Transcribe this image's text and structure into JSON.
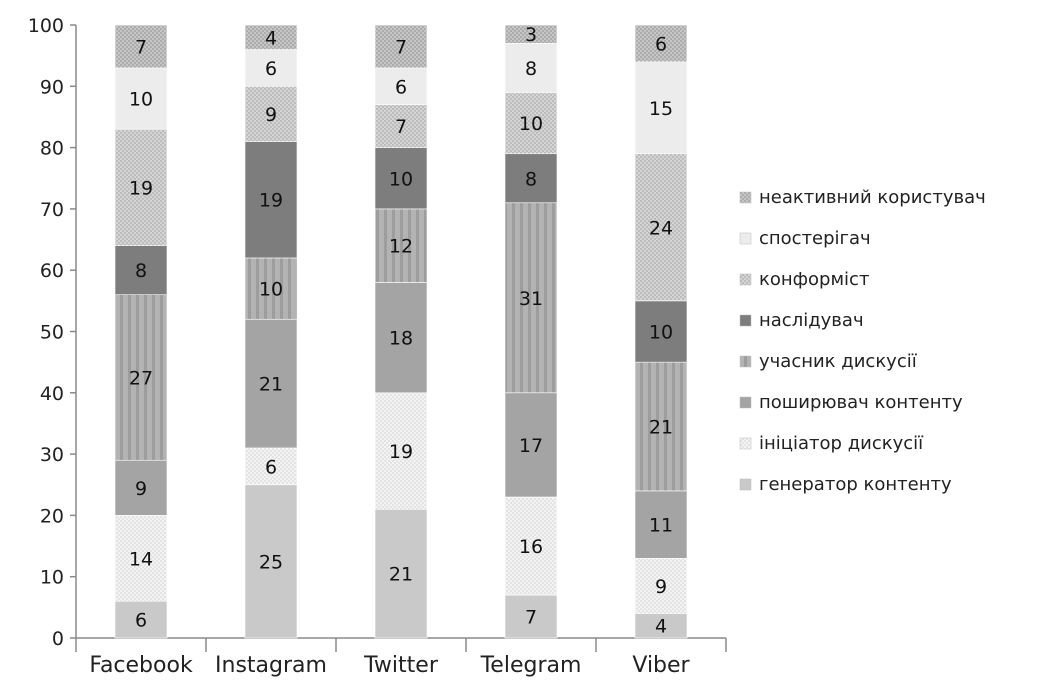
{
  "chart_data": {
    "type": "bar",
    "stacked": true,
    "categories": [
      "Facebook",
      "Instagram",
      "Twitter",
      "Telegram",
      "Viber"
    ],
    "ylim": [
      0,
      100
    ],
    "yticks": [
      "0",
      "10",
      "20",
      "30",
      "40",
      "50",
      "60",
      "70",
      "80",
      "90",
      "100"
    ],
    "legend_position": "right",
    "grid": false,
    "series": [
      {
        "name": "генератор контенту",
        "values": [
          6,
          25,
          21,
          7,
          4
        ],
        "color": "#c9c9c9",
        "pattern": "solid"
      },
      {
        "name": "ініціатор дискусії",
        "values": [
          14,
          6,
          19,
          16,
          9
        ],
        "color": "#f3f3f3",
        "pattern": "dots"
      },
      {
        "name": "поширювач контенту",
        "values": [
          9,
          21,
          18,
          17,
          11
        ],
        "color": "#a4a4a4",
        "pattern": "solid"
      },
      {
        "name": "учасник дискусії",
        "values": [
          27,
          10,
          12,
          31,
          21
        ],
        "color": "#b1b1b1",
        "pattern": "vstripes"
      },
      {
        "name": "наслідувач",
        "values": [
          8,
          19,
          10,
          8,
          10
        ],
        "color": "#7d7d7d",
        "pattern": "solid"
      },
      {
        "name": "конформіст",
        "values": [
          19,
          9,
          7,
          10,
          24
        ],
        "color": "#d2d2d2",
        "pattern": "dots"
      },
      {
        "name": "спостерігач",
        "values": [
          10,
          6,
          6,
          8,
          15
        ],
        "color": "#ececec",
        "pattern": "solid"
      },
      {
        "name": "неактивний користувач",
        "values": [
          7,
          4,
          7,
          3,
          6
        ],
        "color": "#c4c4c4",
        "pattern": "dots"
      }
    ]
  }
}
